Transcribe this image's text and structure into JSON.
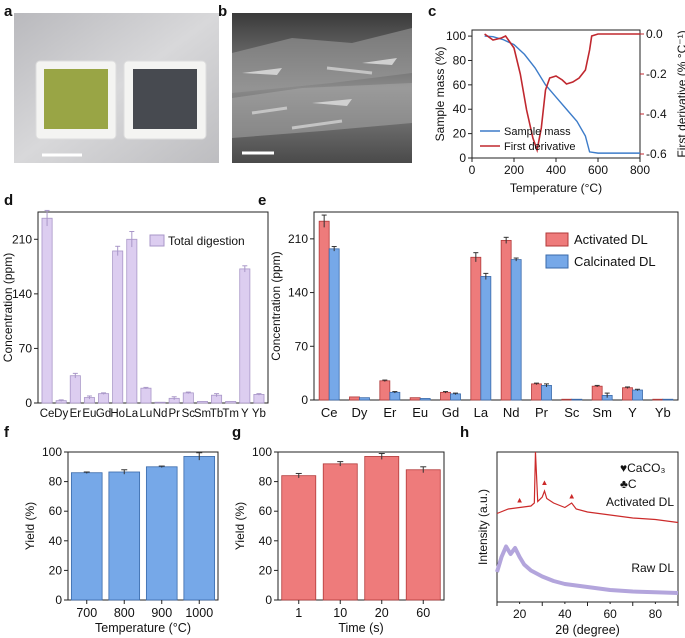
{
  "panel_letters": {
    "a": "a",
    "b": "b",
    "c": "c",
    "d": "d",
    "e": "e",
    "f": "f",
    "g": "g",
    "h": "h"
  },
  "colors": {
    "lavender_fill": "#dccdf0",
    "lavender_stroke": "#a997c8",
    "red_fill": "#ee7b7b",
    "red_stroke": "#b23a3a",
    "blue_fill": "#76a8e8",
    "blue_stroke": "#3a6aaa",
    "tga_blue": "#3d7cc9",
    "tga_red": "#c0282f",
    "xrd_red": "#cc2a2a",
    "xrd_purple": "#b3a5dc"
  },
  "chart_data": [
    {
      "id": "c",
      "type": "line",
      "xlabel": "Temperature (°C)",
      "ylabel": "Sample mass (%)",
      "y2label": "First derivative (% °C⁻¹)",
      "xlim": [
        0,
        800
      ],
      "ylim": [
        0,
        105
      ],
      "y2lim": [
        -0.62,
        0.02
      ],
      "xticks": [
        0,
        200,
        400,
        600,
        800
      ],
      "yticks": [
        0,
        20,
        40,
        60,
        80,
        100
      ],
      "y2ticks": [
        "0.0",
        "-0.2",
        "-0.4",
        "-0.6"
      ],
      "legend": "bottom-right",
      "series": [
        {
          "name": "Sample mass",
          "axis": "left",
          "x": [
            60,
            100,
            150,
            200,
            250,
            300,
            350,
            400,
            450,
            500,
            540,
            560,
            600,
            650,
            700,
            760,
            800
          ],
          "y": [
            100,
            99.5,
            97,
            93,
            85,
            74,
            60,
            50,
            40,
            30,
            18,
            5,
            4,
            4,
            4,
            4,
            4
          ]
        },
        {
          "name": "First derivative",
          "axis": "right",
          "x": [
            60,
            100,
            140,
            160,
            200,
            230,
            260,
            290,
            310,
            330,
            350,
            370,
            400,
            430,
            450,
            480,
            510,
            540,
            560,
            570,
            600,
            650,
            700,
            760,
            800
          ],
          "y": [
            0,
            -0.03,
            -0.02,
            -0.01,
            -0.07,
            -0.2,
            -0.38,
            -0.52,
            -0.58,
            -0.47,
            -0.28,
            -0.22,
            -0.21,
            -0.23,
            -0.25,
            -0.24,
            -0.22,
            -0.18,
            -0.08,
            -0.01,
            0,
            0,
            0,
            0,
            0
          ]
        }
      ]
    },
    {
      "id": "d",
      "type": "bar",
      "ylabel": "Concentration (ppm)",
      "ylim": [
        0,
        245
      ],
      "yticks": [
        0,
        70,
        140,
        210
      ],
      "legend": "top-right",
      "categories": [
        "Ce",
        "Dy",
        "Er",
        "Eu",
        "Gd",
        "Ho",
        "La",
        "Lu",
        "Nd",
        "Pr",
        "Sc",
        "Sm",
        "Tb",
        "Tm",
        "Y",
        "Yb"
      ],
      "series": [
        {
          "name": "Total digestion",
          "values": [
            237,
            3,
            35,
            7,
            12,
            195,
            210,
            19,
            1,
            6,
            13,
            2,
            10,
            2,
            172,
            11
          ],
          "errors": [
            10,
            1,
            3,
            2,
            1,
            6,
            10,
            1,
            0,
            2,
            1,
            0,
            2,
            0,
            4,
            1
          ]
        }
      ]
    },
    {
      "id": "e",
      "type": "bar",
      "ylabel": "Concentration (ppm)",
      "ylim": [
        0,
        245
      ],
      "yticks": [
        0,
        70,
        140,
        210
      ],
      "legend": "top-right",
      "categories": [
        "Ce",
        "Dy",
        "Er",
        "Eu",
        "Gd",
        "La",
        "Nd",
        "Pr",
        "Sc",
        "Sm",
        "Y",
        "Yb"
      ],
      "series": [
        {
          "name": "Activated DL",
          "values": [
            233,
            4,
            25,
            3,
            10,
            186,
            208,
            21,
            1,
            18,
            16,
            1
          ],
          "errors": [
            8,
            0,
            1,
            0,
            1,
            6,
            4,
            1,
            0,
            1,
            1,
            0
          ]
        },
        {
          "name": "Calcinated DL",
          "values": [
            197,
            3,
            10,
            2,
            8,
            161,
            183,
            19,
            1,
            6,
            13,
            1
          ],
          "errors": [
            3,
            0,
            1,
            0,
            1,
            4,
            2,
            2,
            0,
            3,
            1,
            0
          ]
        }
      ]
    },
    {
      "id": "f",
      "type": "bar",
      "xlabel": "Temperature (°C)",
      "ylabel": "Yield (%)",
      "ylim": [
        0,
        100
      ],
      "yticks": [
        0,
        20,
        40,
        60,
        80,
        100
      ],
      "categories": [
        "700",
        "800",
        "900",
        "1000"
      ],
      "values": [
        86,
        86.5,
        90,
        97
      ],
      "errors": [
        0.5,
        1.5,
        0.5,
        2.5
      ]
    },
    {
      "id": "g",
      "type": "bar",
      "xlabel": "Time (s)",
      "ylabel": "Yield (%)",
      "ylim": [
        0,
        100
      ],
      "yticks": [
        0,
        20,
        40,
        60,
        80,
        100
      ],
      "categories": [
        "1",
        "10",
        "20",
        "60"
      ],
      "values": [
        84,
        92,
        97,
        88
      ],
      "errors": [
        1.5,
        1.5,
        2,
        2
      ]
    },
    {
      "id": "h",
      "type": "line",
      "xlabel": "2θ (degree)",
      "ylabel": "Intensity (a.u.)",
      "xlim": [
        10,
        90
      ],
      "xticks": [
        10,
        20,
        30,
        40,
        50,
        60,
        70,
        80,
        90
      ],
      "legend_items": [
        "♥CaCO₃",
        "♣C"
      ],
      "series": [
        {
          "name": "Activated DL",
          "x": [
            10,
            15,
            20,
            25,
            26.5,
            27,
            28,
            30,
            31,
            32,
            35,
            40,
            43,
            45,
            50,
            60,
            70,
            80,
            90
          ],
          "y": [
            0.59,
            0.62,
            0.63,
            0.64,
            0.66,
            1.0,
            0.67,
            0.7,
            0.74,
            0.69,
            0.66,
            0.63,
            0.66,
            0.62,
            0.6,
            0.58,
            0.56,
            0.55,
            0.53
          ]
        },
        {
          "name": "Raw DL",
          "x": [
            10,
            12,
            14,
            16,
            18,
            20,
            22,
            25,
            30,
            35,
            40,
            50,
            60,
            70,
            80,
            90
          ],
          "y": [
            0.2,
            0.3,
            0.37,
            0.32,
            0.36,
            0.3,
            0.25,
            0.21,
            0.17,
            0.14,
            0.12,
            0.1,
            0.08,
            0.07,
            0.065,
            0.06
          ]
        }
      ]
    }
  ]
}
